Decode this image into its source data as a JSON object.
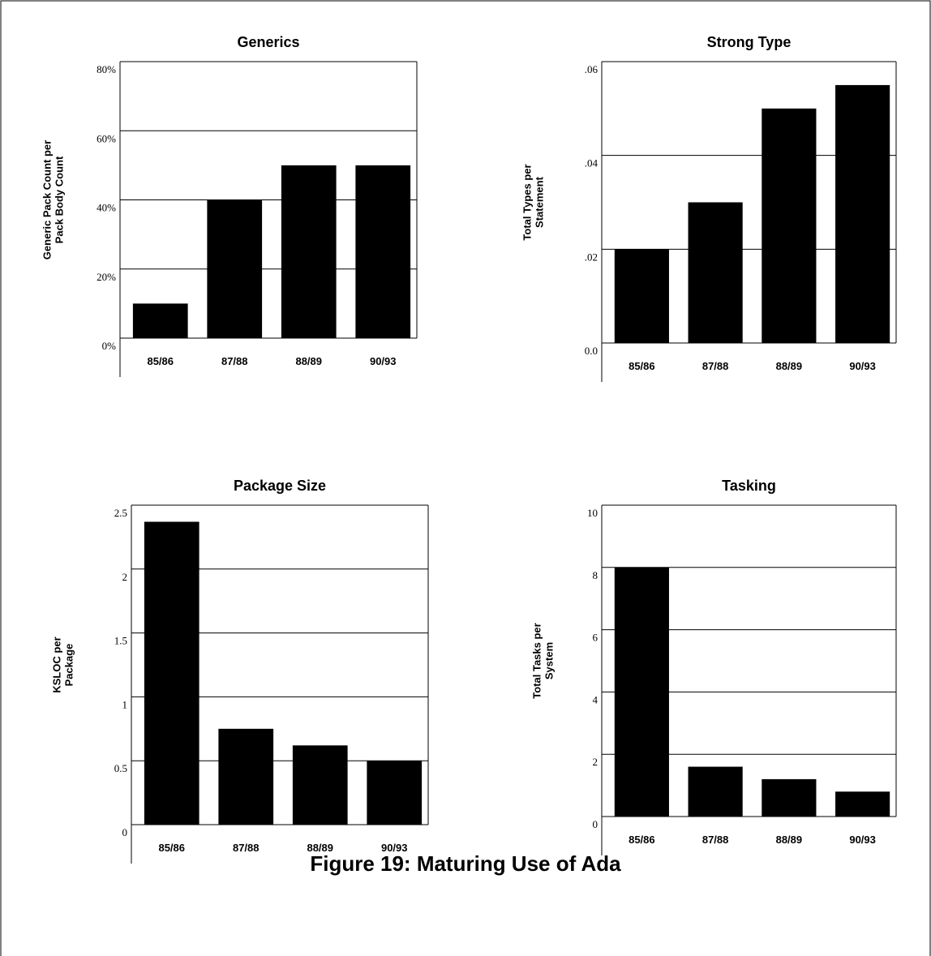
{
  "figure_caption": "Figure 19:  Maturing Use of Ada",
  "chart_data": [
    {
      "type": "bar",
      "title": "Generics",
      "y_label": [
        "Generic Pack Count per",
        "Pack Body Count"
      ],
      "categories": [
        "85/86",
        "87/88",
        "88/89",
        "90/93"
      ],
      "values": [
        10,
        40,
        50,
        50
      ],
      "color": "#000000",
      "ylim": [
        0,
        80
      ],
      "yticks": [
        {
          "value": 0,
          "label": "0%"
        },
        {
          "value": 20,
          "label": "20%"
        },
        {
          "value": 40,
          "label": "40%"
        },
        {
          "value": 60,
          "label": "60%"
        },
        {
          "value": 80,
          "label": "80%"
        }
      ],
      "grid": true
    },
    {
      "type": "bar",
      "title": "Strong Type",
      "y_label": [
        "Total Types per",
        "Statement"
      ],
      "categories": [
        "85/86",
        "87/88",
        "88/89",
        "90/93"
      ],
      "values": [
        0.02,
        0.03,
        0.05,
        0.055
      ],
      "color": "#000000",
      "ylim": [
        0,
        0.06
      ],
      "yticks": [
        {
          "value": 0,
          "label": "0.0"
        },
        {
          "value": 0.02,
          "label": ".02"
        },
        {
          "value": 0.04,
          "label": ".04"
        },
        {
          "value": 0.06,
          "label": ".06"
        }
      ],
      "grid": true
    },
    {
      "type": "bar",
      "title": "Package Size",
      "y_label": [
        "KSLOC per",
        "Package"
      ],
      "categories": [
        "85/86",
        "87/88",
        "88/89",
        "90/93"
      ],
      "values": [
        2.37,
        0.75,
        0.62,
        0.5
      ],
      "color": "#000000",
      "ylim": [
        0,
        2.5
      ],
      "yticks": [
        0,
        0.5,
        1,
        1.5,
        2,
        2.5
      ],
      "grid": true
    },
    {
      "type": "bar",
      "title": "Tasking",
      "y_label": [
        "Total Tasks per",
        "System"
      ],
      "categories": [
        "85/86",
        "87/88",
        "88/89",
        "90/93"
      ],
      "values": [
        8,
        1.6,
        1.2,
        0.8
      ],
      "color": "#000000",
      "ylim": [
        0,
        10
      ],
      "yticks": [
        0,
        2,
        4,
        6,
        8,
        10
      ],
      "grid": true
    }
  ]
}
